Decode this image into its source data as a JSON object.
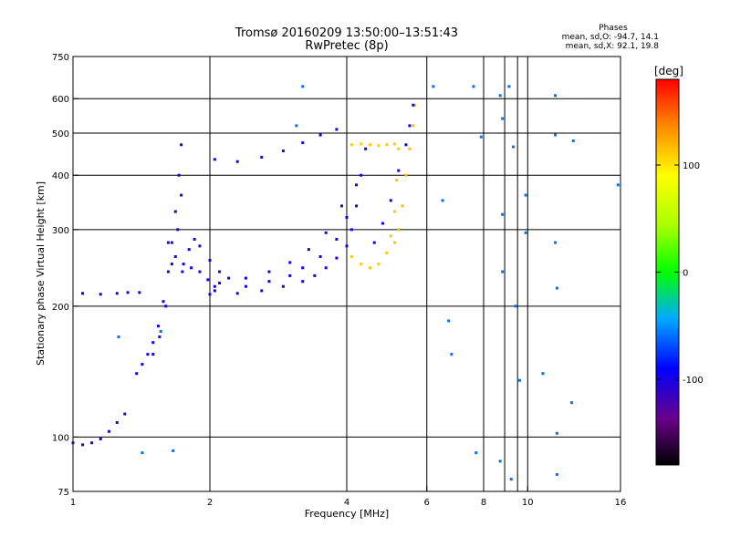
{
  "header": {
    "title_line1": "Tromsø 20160209 13:50:00–13:51:43",
    "title_line2": "RwPretec (8p)",
    "stats_title": "Phases",
    "stats_o": "mean, sd,O: -94.7, 14.1",
    "stats_x": "mean, sd,X:  92.1, 19.8"
  },
  "chart_data": {
    "type": "scatter",
    "xlabel": "Frequency [MHz]",
    "ylabel": "Stationary phase Virtual Height [km]",
    "xscale": "log",
    "yscale": "log",
    "xlim": [
      1,
      16
    ],
    "ylim": [
      75,
      750
    ],
    "x_ticks": [
      1,
      2,
      4,
      6,
      8,
      10,
      16
    ],
    "x_tick_labels": [
      "1",
      "2",
      "4",
      "6",
      "8",
      "10",
      "16"
    ],
    "y_ticks": [
      75,
      100,
      200,
      300,
      400,
      500,
      600,
      750
    ],
    "y_tick_labels": [
      "75",
      "100",
      "200",
      "300",
      "400",
      "500",
      "600",
      "750"
    ],
    "grid": true,
    "colorbar": {
      "label": "[deg]",
      "range": [
        -180,
        180
      ],
      "ticks": [
        100,
        0,
        -100
      ],
      "tick_labels": [
        "100",
        "0",
        "-100"
      ]
    },
    "traces": [
      {
        "name": "low_trace",
        "phase": -110,
        "points": [
          [
            1.0,
            97
          ],
          [
            1.05,
            96
          ],
          [
            1.1,
            97
          ],
          [
            1.15,
            99
          ],
          [
            1.2,
            103
          ],
          [
            1.25,
            108
          ],
          [
            1.3,
            113
          ]
        ]
      },
      {
        "name": "e_layer",
        "phase": -105,
        "points": [
          [
            1.05,
            214
          ],
          [
            1.15,
            213
          ],
          [
            1.25,
            214
          ],
          [
            1.32,
            215
          ],
          [
            1.4,
            215
          ]
        ]
      },
      {
        "name": "f1_cusp_low",
        "phase": -100,
        "points": [
          [
            1.38,
            140
          ],
          [
            1.42,
            147
          ],
          [
            1.46,
            155
          ],
          [
            1.5,
            165
          ],
          [
            1.54,
            180
          ],
          [
            1.58,
            205
          ],
          [
            1.62,
            240
          ],
          [
            1.65,
            280
          ],
          [
            1.68,
            330
          ],
          [
            1.71,
            400
          ],
          [
            1.73,
            470
          ]
        ]
      },
      {
        "name": "f1_cusp_upper",
        "phase": -100,
        "points": [
          [
            1.5,
            155
          ],
          [
            1.55,
            170
          ],
          [
            1.6,
            200
          ],
          [
            1.65,
            250
          ],
          [
            1.7,
            300
          ],
          [
            1.73,
            360
          ]
        ]
      },
      {
        "name": "f1_shoulder",
        "phase": -100,
        "points": [
          [
            1.62,
            280
          ],
          [
            1.68,
            260
          ],
          [
            1.75,
            250
          ],
          [
            1.82,
            245
          ],
          [
            1.9,
            240
          ],
          [
            1.98,
            230
          ],
          [
            2.05,
            222
          ]
        ]
      },
      {
        "name": "f1_ridge",
        "phase": -100,
        "points": [
          [
            1.74,
            240
          ],
          [
            1.8,
            270
          ],
          [
            1.85,
            285
          ],
          [
            1.9,
            275
          ],
          [
            2.0,
            255
          ],
          [
            2.1,
            240
          ],
          [
            2.2,
            232
          ]
        ]
      },
      {
        "name": "f2_o_floor",
        "phase": -100,
        "points": [
          [
            2.0,
            213
          ],
          [
            2.3,
            214
          ],
          [
            2.6,
            217
          ],
          [
            2.9,
            222
          ],
          [
            3.2,
            228
          ],
          [
            3.4,
            235
          ],
          [
            3.6,
            245
          ],
          [
            3.8,
            258
          ],
          [
            4.0,
            275
          ],
          [
            4.1,
            300
          ],
          [
            4.2,
            340
          ],
          [
            4.3,
            400
          ],
          [
            4.4,
            460
          ]
        ]
      },
      {
        "name": "f2_o_trace2",
        "phase": -100,
        "points": [
          [
            2.05,
            217
          ],
          [
            2.4,
            222
          ],
          [
            2.7,
            228
          ],
          [
            3.0,
            235
          ],
          [
            3.2,
            245
          ],
          [
            3.5,
            260
          ],
          [
            3.8,
            285
          ],
          [
            4.0,
            320
          ],
          [
            4.2,
            380
          ]
        ]
      },
      {
        "name": "f2_o_trace3",
        "phase": -105,
        "points": [
          [
            2.1,
            226
          ],
          [
            2.4,
            232
          ],
          [
            2.7,
            240
          ],
          [
            3.0,
            252
          ],
          [
            3.3,
            270
          ],
          [
            3.6,
            295
          ],
          [
            3.9,
            340
          ]
        ]
      },
      {
        "name": "upper_trace",
        "phase": -105,
        "points": [
          [
            2.05,
            435
          ],
          [
            2.3,
            430
          ],
          [
            2.6,
            440
          ],
          [
            2.9,
            455
          ],
          [
            3.2,
            475
          ],
          [
            3.5,
            495
          ],
          [
            3.8,
            510
          ]
        ]
      },
      {
        "name": "x_mode_low",
        "phase": 110,
        "points": [
          [
            4.1,
            260
          ],
          [
            4.3,
            250
          ],
          [
            4.5,
            245
          ],
          [
            4.7,
            250
          ],
          [
            4.9,
            265
          ],
          [
            5.0,
            290
          ],
          [
            5.1,
            330
          ],
          [
            5.15,
            390
          ],
          [
            5.2,
            460
          ]
        ]
      },
      {
        "name": "x_mode_band",
        "phase": 110,
        "points": [
          [
            4.1,
            470
          ],
          [
            4.3,
            472
          ],
          [
            4.5,
            470
          ],
          [
            4.7,
            468
          ],
          [
            4.9,
            470
          ],
          [
            5.1,
            472
          ]
        ]
      },
      {
        "name": "x_mode_upper",
        "phase": 115,
        "points": [
          [
            5.1,
            280
          ],
          [
            5.2,
            300
          ],
          [
            5.3,
            340
          ],
          [
            5.4,
            400
          ],
          [
            5.5,
            460
          ],
          [
            5.6,
            520
          ],
          [
            5.65,
            580
          ]
        ]
      },
      {
        "name": "f2_high",
        "phase": -95,
        "points": [
          [
            4.6,
            280
          ],
          [
            4.8,
            310
          ],
          [
            5.0,
            350
          ],
          [
            5.2,
            410
          ],
          [
            5.4,
            470
          ],
          [
            5.5,
            520
          ],
          [
            5.6,
            580
          ]
        ]
      },
      {
        "name": "scatter_noise",
        "phase": -60,
        "points": [
          [
            3.2,
            640
          ],
          [
            3.1,
            520
          ],
          [
            6.2,
            640
          ],
          [
            6.5,
            350
          ],
          [
            6.7,
            185
          ],
          [
            6.8,
            155
          ],
          [
            7.6,
            640
          ],
          [
            7.9,
            490
          ],
          [
            8.7,
            610
          ],
          [
            8.8,
            540
          ],
          [
            8.8,
            325
          ],
          [
            8.8,
            240
          ],
          [
            9.1,
            640
          ],
          [
            9.3,
            465
          ],
          [
            9.4,
            200
          ],
          [
            9.6,
            135
          ],
          [
            9.9,
            360
          ],
          [
            9.9,
            295
          ],
          [
            10.8,
            140
          ],
          [
            11.5,
            610
          ],
          [
            11.5,
            495
          ],
          [
            11.5,
            280
          ],
          [
            11.6,
            220
          ],
          [
            11.6,
            102
          ],
          [
            12.5,
            120
          ],
          [
            12.6,
            480
          ],
          [
            15.8,
            380
          ],
          [
            7.7,
            92
          ],
          [
            8.7,
            88
          ],
          [
            9.2,
            80
          ],
          [
            11.6,
            82
          ],
          [
            1.42,
            92
          ],
          [
            1.66,
            93
          ],
          [
            1.26,
            170
          ],
          [
            1.56,
            175
          ]
        ]
      }
    ]
  }
}
